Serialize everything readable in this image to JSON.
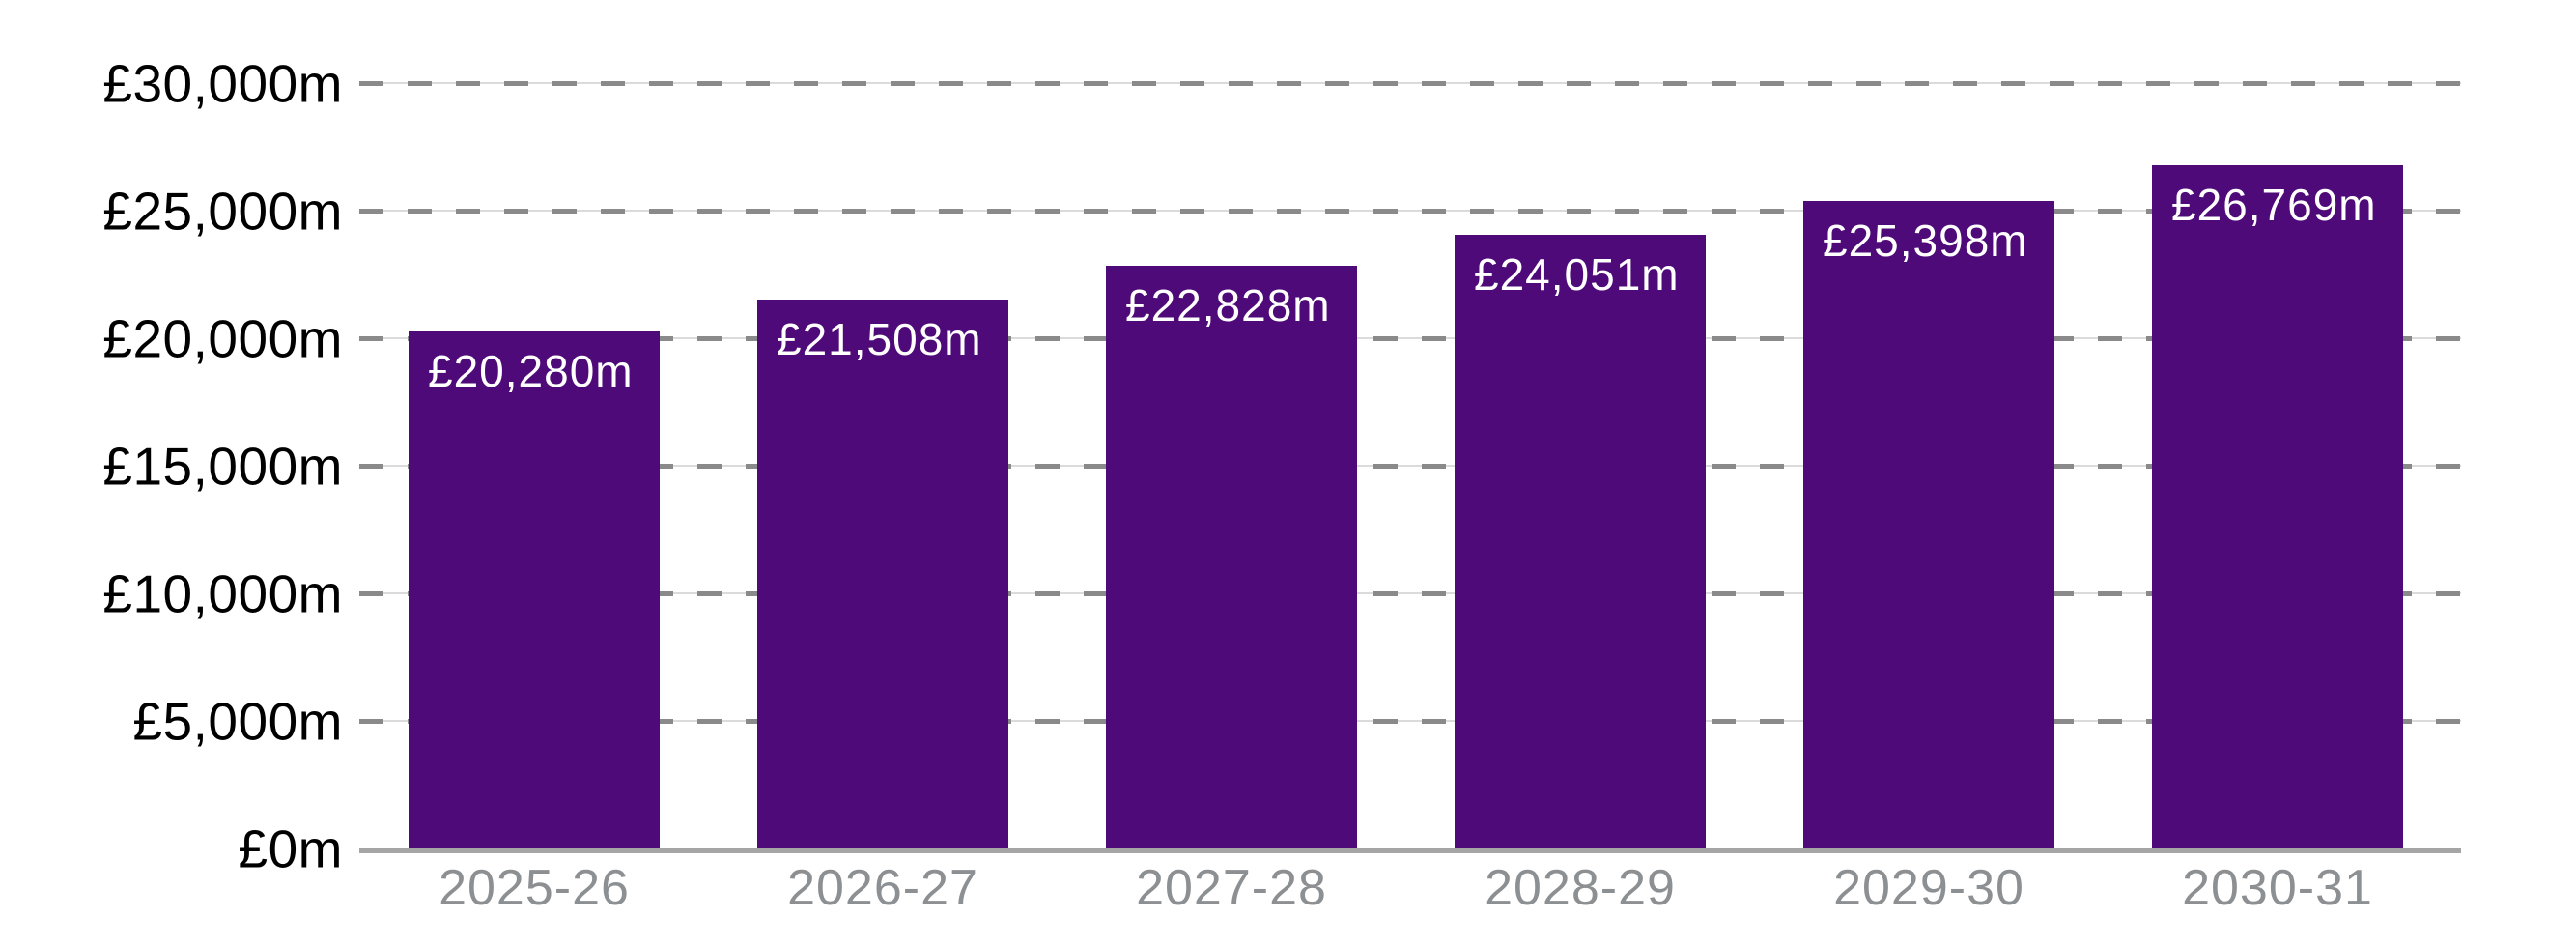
{
  "chart_data": {
    "type": "bar",
    "title": "",
    "categories": [
      "2025-26",
      "2026-27",
      "2027-28",
      "2028-29",
      "2029-30",
      "2030-31"
    ],
    "values": [
      20280,
      21508,
      22828,
      24051,
      25398,
      26769
    ],
    "bar_labels": [
      "£20,280m",
      "£21,508m",
      "£22,828m",
      "£24,051m",
      "£25,398m",
      "£26,769m"
    ],
    "xlabel": "",
    "ylabel": "",
    "ylim": [
      0,
      30000
    ],
    "y_tick_step": 5000,
    "y_tick_labels": [
      "£0m",
      "£5,000m",
      "£10,000m",
      "£15,000m",
      "£20,000m",
      "£25,000m",
      "£30,000m"
    ],
    "grid": "horizontal dashed gridlines at each y tick, solid axis line at zero",
    "legend_position": "none",
    "colors": {
      "bar_fill": "#4E0A78",
      "bar_label_text": "#FFFFFF",
      "y_tick_text": "#000000",
      "x_tick_text": "#8D9093",
      "grid_dash": "#8A8A8A",
      "grid_hairline": "#DBDBDB",
      "zero_axis_line": "#A5A5A5",
      "background": "#FFFFFF"
    }
  }
}
